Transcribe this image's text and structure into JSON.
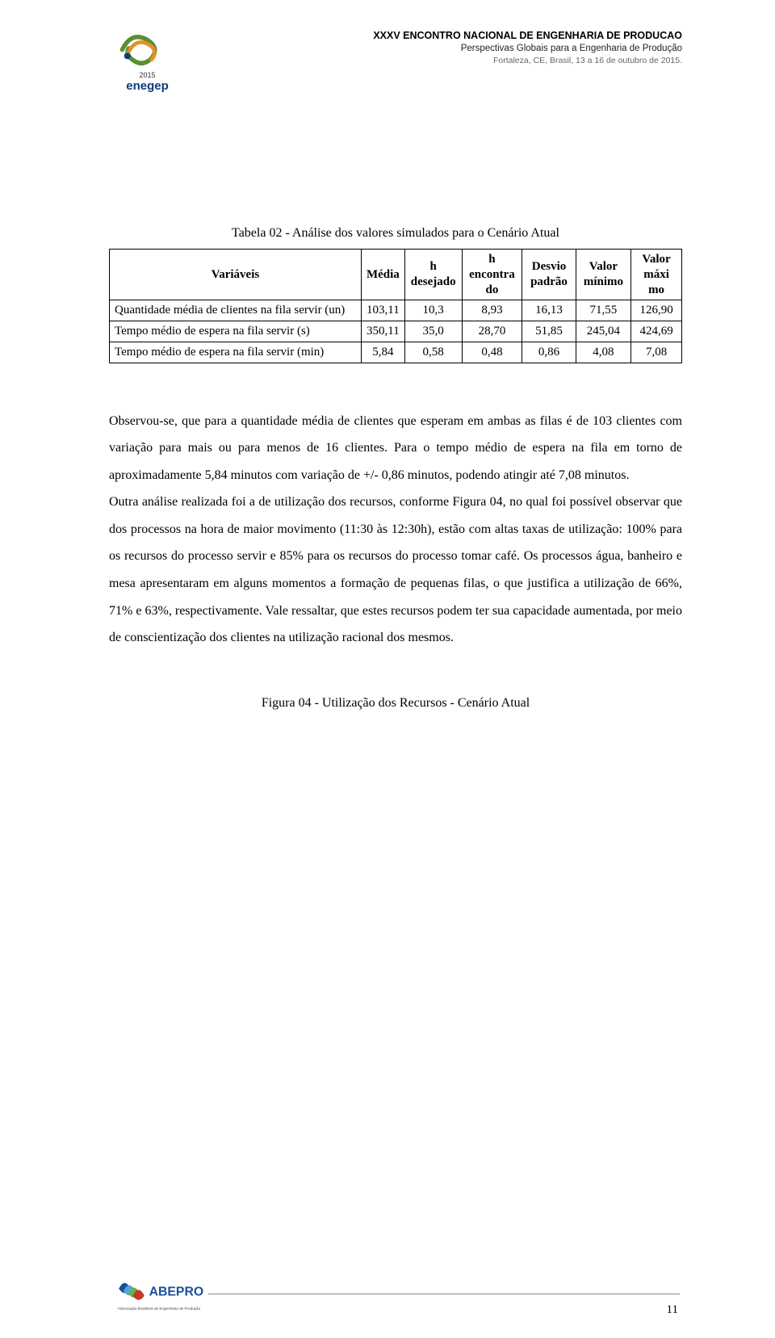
{
  "header": {
    "logo_name": "enegep",
    "logo_year": "2015",
    "line1": "XXXV ENCONTRO NACIONAL DE ENGENHARIA DE PRODUCAO",
    "line2": "Perspectivas Globais para a Engenharia de Produção",
    "line3": "Fortaleza, CE, Brasil, 13 a 16 de outubro de 2015."
  },
  "table": {
    "caption": "Tabela 02 - Análise dos valores simulados para o Cenário Atual",
    "columns": [
      "Variáveis",
      "Média",
      "h desejado",
      "h encontra do",
      "Desvio padrão",
      "Valor mínimo",
      "Valor máxi mo"
    ],
    "rows": [
      [
        "Quantidade média de clientes na fila servir (un)",
        "103,11",
        "10,3",
        "8,93",
        "16,13",
        "71,55",
        "126,90"
      ],
      [
        "Tempo médio de espera na fila servir (s)",
        "350,11",
        "35,0",
        "28,70",
        "51,85",
        "245,04",
        "424,69"
      ],
      [
        "Tempo médio de espera na fila servir (min)",
        "5,84",
        "0,58",
        "0,48",
        "0,86",
        "4,08",
        "7,08"
      ]
    ],
    "col_widths_pct": [
      44,
      9,
      10,
      10,
      9,
      9,
      9
    ]
  },
  "body_text": "Observou-se, que para a quantidade média de clientes que esperam em ambas as filas é de 103 clientes com variação para mais ou para menos de 16 clientes. Para o tempo médio de espera na fila em torno de aproximadamente 5,84 minutos com variação de +/- 0,86 minutos, podendo atingir até 7,08 minutos.\nOutra análise realizada foi a de utilização dos recursos, conforme Figura 04, no qual foi possível observar que dos processos na hora de maior movimento (11:30 às 12:30h), estão com altas taxas de utilização: 100% para os recursos do processo servir e 85% para os recursos do processo tomar café. Os processos água, banheiro e mesa apresentaram em alguns momentos a formação de pequenas filas, o que justifica a utilização de 66%, 71% e 63%, respectivamente. Vale ressaltar, que estes recursos podem ter sua capacidade aumentada, por meio de conscientização dos clientes na utilização racional dos mesmos.",
  "figure_caption": "Figura 04 - Utilização dos Recursos - Cenário Atual",
  "footer": {
    "logo_name": "ABEPRO",
    "logo_sub": "Associação Brasileira de Engenharia de Produção",
    "page_number": "11"
  },
  "colors": {
    "logo_green": "#5a8f2e",
    "logo_orange": "#e3902a",
    "logo_blue": "#0b3b7a",
    "abepro_blue": "#1b4f9b",
    "abepro_cyan": "#4aa8d8",
    "abepro_green": "#6ab04c",
    "abepro_red": "#c0392b",
    "rule_gray": "#888888"
  }
}
